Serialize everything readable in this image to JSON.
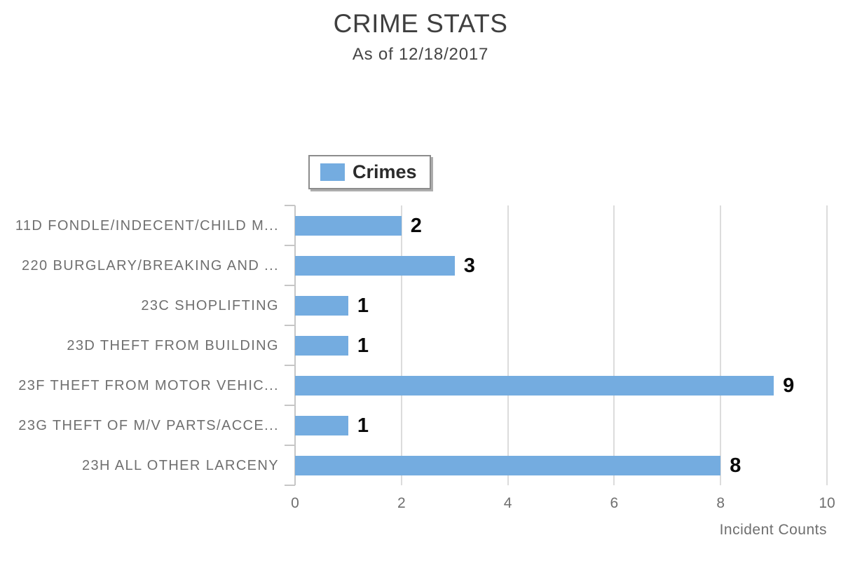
{
  "title": "CRIME STATS",
  "subtitle": "As of 12/18/2017",
  "legend": {
    "label": "Crimes"
  },
  "colors": {
    "bar": "#74ace0",
    "gridline": "#dcdcdc",
    "axis": "#c6c6c6",
    "title_text": "#3f3f3f",
    "label_text": "#6f6f6f",
    "value_text": "#0a0a0a"
  },
  "chart_data": {
    "type": "bar",
    "orientation": "horizontal",
    "title": "CRIME STATS",
    "subtitle": "As of 12/18/2017",
    "categories": [
      "11D FONDLE/INDECENT/CHILD M...",
      "220 BURGLARY/BREAKING AND ...",
      "23C SHOPLIFTING",
      "23D THEFT FROM BUILDING",
      "23F THEFT FROM MOTOR VEHIC...",
      "23G THEFT OF M/V PARTS/ACCE...",
      "23H ALL OTHER LARCENY"
    ],
    "series": [
      {
        "name": "Crimes",
        "values": [
          2,
          3,
          1,
          1,
          9,
          1,
          8
        ]
      }
    ],
    "value_labels": [
      2,
      3,
      1,
      1,
      9,
      1,
      8
    ],
    "x_ticks": [
      0,
      2,
      4,
      6,
      8,
      10
    ],
    "xlim": [
      0,
      10
    ],
    "xlabel": "Incident Counts",
    "ylabel": "",
    "grid": "vertical-only",
    "legend_position": "top"
  }
}
